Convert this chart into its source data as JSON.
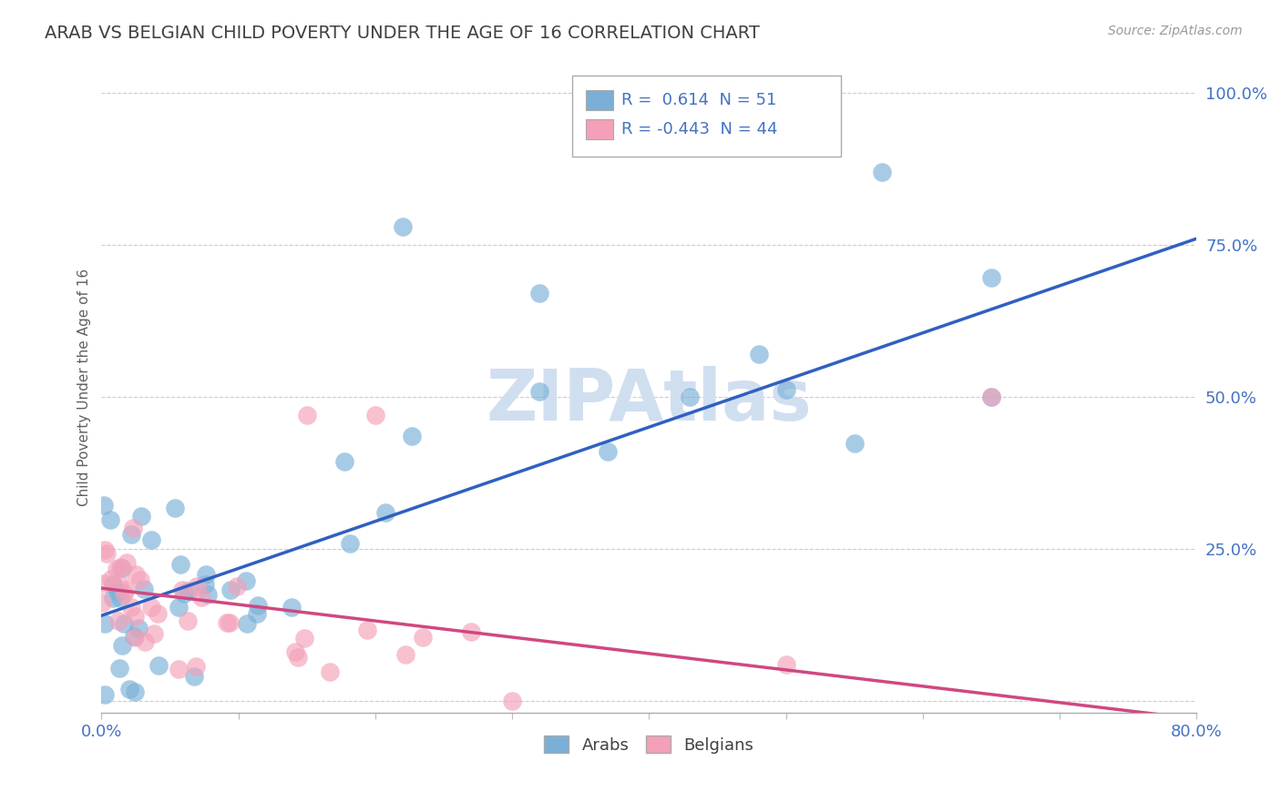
{
  "title": "ARAB VS BELGIAN CHILD POVERTY UNDER THE AGE OF 16 CORRELATION CHART",
  "source": "Source: ZipAtlas.com",
  "ylabel": "Child Poverty Under the Age of 16",
  "xlim": [
    0.0,
    0.8
  ],
  "ylim": [
    -0.02,
    1.05
  ],
  "arab_color": "#7ab0d8",
  "belgian_color": "#f4a0b8",
  "arab_line_color": "#3060c0",
  "belgian_line_color": "#d04880",
  "arab_R": 0.614,
  "arab_N": 51,
  "belgian_R": -0.443,
  "belgian_N": 44,
  "watermark": "ZIPAtlas",
  "watermark_color": "#d0dff0",
  "background_color": "#ffffff",
  "grid_color": "#cccccc",
  "title_color": "#404040",
  "axis_label_color": "#606060",
  "tick_label_color": "#4472c4",
  "legend_R_color": "#4472c4",
  "arab_line_x0": 0.0,
  "arab_line_y0": 0.14,
  "arab_line_x1": 0.8,
  "arab_line_y1": 0.76,
  "belg_line_x0": 0.0,
  "belg_line_y0": 0.185,
  "belg_line_x1": 0.8,
  "belg_line_y1": -0.03
}
